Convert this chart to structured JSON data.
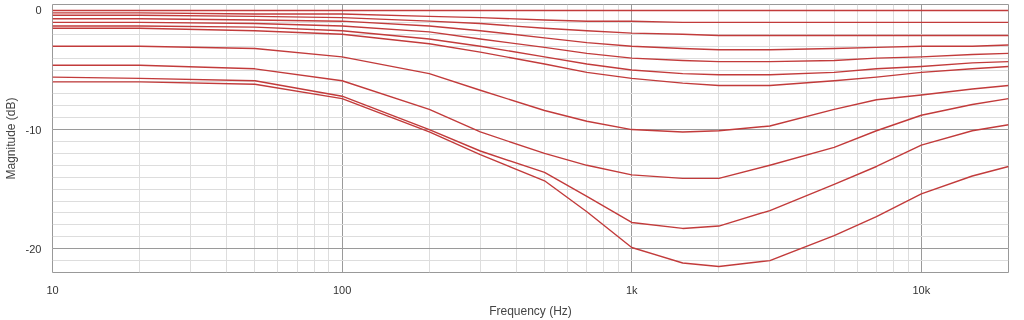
{
  "chart_data": {
    "type": "line",
    "xlabel": "Frequency (Hz)",
    "ylabel": "Magnitude (dB)",
    "log": "x",
    "grid": true,
    "line_style": "solid",
    "marker": "none",
    "x": [
      10,
      20,
      50,
      100,
      200,
      300,
      500,
      700,
      1000,
      1500,
      2000,
      3000,
      5000,
      7000,
      10000,
      15000,
      20000
    ],
    "xlim": [
      10,
      20000
    ],
    "xticks": [
      10,
      100,
      {
        "value": 1000,
        "label": "1k"
      },
      {
        "value": 10000,
        "label": "10k"
      }
    ],
    "ylim": [
      -22,
      0.5
    ],
    "yticks": [
      -20,
      -10,
      0
    ],
    "series": [
      {
        "color": "#c23b3b",
        "values": [
          0,
          0,
          0,
          0,
          0,
          0,
          0,
          0,
          0,
          0,
          0,
          0,
          0,
          0,
          0,
          0,
          0
        ]
      },
      {
        "color": "#c23b3b",
        "values": [
          -0.2,
          -0.2,
          -0.3,
          -0.3,
          -0.5,
          -0.6,
          -0.8,
          -0.9,
          -0.9,
          -1.0,
          -1.0,
          -1.0,
          -1.0,
          -1.0,
          -1.0,
          -1.0,
          -1.0
        ]
      },
      {
        "color": "#c23b3b",
        "values": [
          -0.4,
          -0.4,
          -0.5,
          -0.6,
          -0.9,
          -1.1,
          -1.5,
          -1.7,
          -1.9,
          -2.0,
          -2.1,
          -2.1,
          -2.1,
          -2.1,
          -2.1,
          -2.1,
          -2.1
        ]
      },
      {
        "color": "#c23b3b",
        "values": [
          -0.7,
          -0.7,
          -0.8,
          -0.9,
          -1.3,
          -1.7,
          -2.3,
          -2.7,
          -3.0,
          -3.2,
          -3.3,
          -3.3,
          -3.2,
          -3.1,
          -3.0,
          -3.0,
          -2.9
        ]
      },
      {
        "color": "#c23b3b",
        "values": [
          -1.0,
          -1.0,
          -1.1,
          -1.3,
          -1.8,
          -2.4,
          -3.1,
          -3.6,
          -4.0,
          -4.2,
          -4.3,
          -4.3,
          -4.2,
          -4.0,
          -3.9,
          -3.7,
          -3.6
        ]
      },
      {
        "color": "#c23b3b",
        "values": [
          -1.3,
          -1.3,
          -1.4,
          -1.7,
          -2.4,
          -3.0,
          -3.9,
          -4.5,
          -5.0,
          -5.3,
          -5.4,
          -5.4,
          -5.2,
          -4.9,
          -4.7,
          -4.4,
          -4.3
        ]
      },
      {
        "color": "#c23b3b",
        "values": [
          -1.5,
          -1.5,
          -1.7,
          -2.0,
          -2.8,
          -3.5,
          -4.5,
          -5.2,
          -5.7,
          -6.1,
          -6.3,
          -6.3,
          -5.9,
          -5.6,
          -5.2,
          -4.9,
          -4.7
        ]
      },
      {
        "color": "#c23b3b",
        "values": [
          -3.0,
          -3.0,
          -3.2,
          -3.9,
          -5.3,
          -6.7,
          -8.4,
          -9.3,
          -10.0,
          -10.2,
          -10.1,
          -9.7,
          -8.3,
          -7.5,
          -7.1,
          -6.6,
          -6.3
        ]
      },
      {
        "color": "#c23b3b",
        "values": [
          -4.6,
          -4.6,
          -4.9,
          -5.9,
          -8.3,
          -10.2,
          -12.0,
          -13.0,
          -13.8,
          -14.1,
          -14.1,
          -13.0,
          -11.5,
          -10.1,
          -8.8,
          -7.9,
          -7.4
        ]
      },
      {
        "color": "#c23b3b",
        "values": [
          -5.6,
          -5.7,
          -5.9,
          -7.2,
          -10.0,
          -11.8,
          -13.6,
          -15.6,
          -17.8,
          -18.3,
          -18.1,
          -16.8,
          -14.6,
          -13.1,
          -11.3,
          -10.1,
          -9.6
        ]
      },
      {
        "color": "#c23b3b",
        "values": [
          -6.0,
          -6.0,
          -6.2,
          -7.4,
          -10.2,
          -12.1,
          -14.3,
          -16.9,
          -19.9,
          -21.2,
          -21.5,
          -21.0,
          -18.9,
          -17.3,
          -15.4,
          -13.9,
          -13.1
        ]
      }
    ]
  }
}
